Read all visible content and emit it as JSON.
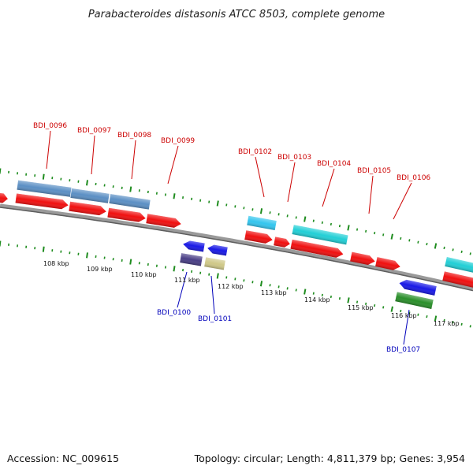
{
  "title": "Parabacteroides distasonis ATCC 8503, complete genome",
  "footer": {
    "accession": "Accession: NC_009615",
    "summary": "Topology: circular; Length: 4,811,379 bp; Genes: 3,954"
  },
  "colors": {
    "backbone": "#7a7a7a",
    "tick": "#1e8c1e",
    "cds_red": "#f01010",
    "steelblue": "#5b8fc4",
    "lightblue": "#33c5ee",
    "cyan": "#22cfd6",
    "blue": "#1a1ae6",
    "slate": "#4a3f86",
    "khaki": "#cfc888",
    "green": "#2a8f2a",
    "label_red": "#cc0000",
    "label_blue": "#0000bb"
  },
  "kbp_labels": [
    "108 kbp",
    "109 kbp",
    "110 kbp",
    "111 kbp",
    "112 kbp",
    "113 kbp",
    "114 kbp",
    "115 kbp",
    "116 kbp",
    "117 kbp"
  ],
  "gene_labels_top": [
    "BDI_0096",
    "BDI_0097",
    "BDI_0098",
    "BDI_0099",
    "BDI_0102",
    "BDI_0103",
    "BDI_0104",
    "BDI_0105",
    "BDI_0106"
  ],
  "gene_labels_bottom": [
    "BDI_0100",
    "BDI_0101",
    "BDI_0107"
  ]
}
